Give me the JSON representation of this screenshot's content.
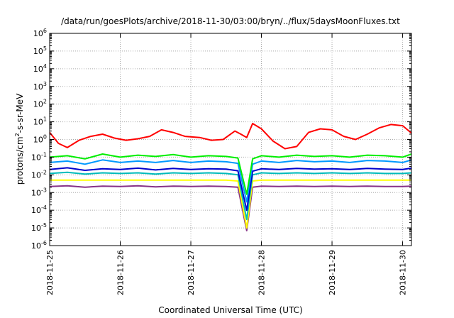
{
  "chart_data": {
    "type": "line",
    "title": "/data/run/goesPlots/archive/2018-11-30/03:00/bryn/../flux/5daysMoonFluxes.txt",
    "xlabel": "Coordinated Universal Time (UTC)",
    "ylabel": {
      "base": "protons/cm",
      "sup": "2",
      "rest": "-s-sr-MeV"
    },
    "y_scale": "log",
    "ylim": [
      1e-06,
      1000000.0
    ],
    "y_ticks": [
      {
        "value": 1e-06,
        "base": "10",
        "exp": "-6"
      },
      {
        "value": 1e-05,
        "base": "10",
        "exp": "-5"
      },
      {
        "value": 0.0001,
        "base": "10",
        "exp": "-4"
      },
      {
        "value": 0.001,
        "base": "10",
        "exp": "-3"
      },
      {
        "value": 0.01,
        "base": "10",
        "exp": "-2"
      },
      {
        "value": 0.1,
        "base": "10",
        "exp": "-1"
      },
      {
        "value": 1,
        "base": "10",
        "exp": "0"
      },
      {
        "value": 10.0,
        "base": "10",
        "exp": "1"
      },
      {
        "value": 100.0,
        "base": "10",
        "exp": "2"
      },
      {
        "value": 1000.0,
        "base": "10",
        "exp": "3"
      },
      {
        "value": 10000.0,
        "base": "10",
        "exp": "4"
      },
      {
        "value": 100000.0,
        "base": "10",
        "exp": "5"
      },
      {
        "value": 1000000.0,
        "base": "10",
        "exp": "6"
      }
    ],
    "x_ticks": [
      "2018-11-25",
      "2018-11-26",
      "2018-11-27",
      "2018-11-28",
      "2018-11-29",
      "2018-11-30"
    ],
    "xlim": [
      "2018-11-25T00:00",
      "2018-11-30T03:00"
    ],
    "grid": true,
    "series": [
      {
        "color": "#ff0000",
        "x": [
          "2018-11-25T00:00",
          "2018-11-25T03:00",
          "2018-11-25T06:00",
          "2018-11-25T10:00",
          "2018-11-25T14:00",
          "2018-11-25T18:00",
          "2018-11-25T22:00",
          "2018-11-26T02:00",
          "2018-11-26T06:00",
          "2018-11-26T10:00",
          "2018-11-26T14:00",
          "2018-11-26T18:00",
          "2018-11-26T22:00",
          "2018-11-27T03:00",
          "2018-11-27T07:00",
          "2018-11-27T11:00",
          "2018-11-27T15:00",
          "2018-11-27T17:00",
          "2018-11-27T19:00",
          "2018-11-27T21:00",
          "2018-11-28T00:00",
          "2018-11-28T04:00",
          "2018-11-28T08:00",
          "2018-11-28T12:00",
          "2018-11-28T16:00",
          "2018-11-28T20:00",
          "2018-11-29T00:00",
          "2018-11-29T04:00",
          "2018-11-29T08:00",
          "2018-11-29T12:00",
          "2018-11-29T16:00",
          "2018-11-29T20:00",
          "2018-11-30T00:00",
          "2018-11-30T03:00"
        ],
        "y": [
          2.5,
          0.6,
          0.35,
          0.9,
          1.5,
          2,
          1.2,
          0.9,
          1.1,
          1.5,
          3.5,
          2.5,
          1.5,
          1.3,
          0.9,
          1.0,
          3.0,
          2.0,
          1.3,
          8,
          4,
          0.8,
          0.3,
          0.4,
          2.5,
          4,
          3.5,
          1.5,
          1.0,
          2.0,
          4.5,
          7,
          6,
          2.3
        ]
      },
      {
        "color": "#00ee00",
        "x": [
          "2018-11-25T00:00",
          "2018-11-25T06:00",
          "2018-11-25T12:00",
          "2018-11-25T18:00",
          "2018-11-26T00:00",
          "2018-11-26T06:00",
          "2018-11-26T12:00",
          "2018-11-26T18:00",
          "2018-11-27T00:00",
          "2018-11-27T06:00",
          "2018-11-27T12:00",
          "2018-11-27T16:00",
          "2018-11-27T19:00",
          "2018-11-27T21:00",
          "2018-11-28T00:00",
          "2018-11-28T06:00",
          "2018-11-28T12:00",
          "2018-11-28T18:00",
          "2018-11-29T00:00",
          "2018-11-29T06:00",
          "2018-11-29T12:00",
          "2018-11-29T18:00",
          "2018-11-30T00:00",
          "2018-11-30T03:00"
        ],
        "y": [
          0.1,
          0.12,
          0.08,
          0.15,
          0.1,
          0.13,
          0.11,
          0.14,
          0.1,
          0.12,
          0.11,
          0.09,
          0.0008,
          0.08,
          0.12,
          0.1,
          0.13,
          0.11,
          0.12,
          0.1,
          0.13,
          0.12,
          0.1,
          0.15
        ]
      },
      {
        "color": "#0099ff",
        "x": [
          "2018-11-25T00:00",
          "2018-11-25T06:00",
          "2018-11-25T12:00",
          "2018-11-25T18:00",
          "2018-11-26T00:00",
          "2018-11-26T06:00",
          "2018-11-26T12:00",
          "2018-11-26T18:00",
          "2018-11-27T00:00",
          "2018-11-27T06:00",
          "2018-11-27T12:00",
          "2018-11-27T16:00",
          "2018-11-27T19:00",
          "2018-11-27T21:00",
          "2018-11-28T00:00",
          "2018-11-28T06:00",
          "2018-11-28T12:00",
          "2018-11-28T18:00",
          "2018-11-29T00:00",
          "2018-11-29T06:00",
          "2018-11-29T12:00",
          "2018-11-29T18:00",
          "2018-11-30T00:00",
          "2018-11-30T03:00"
        ],
        "y": [
          0.05,
          0.06,
          0.04,
          0.07,
          0.05,
          0.06,
          0.05,
          0.065,
          0.05,
          0.06,
          0.055,
          0.045,
          0.0003,
          0.04,
          0.06,
          0.05,
          0.065,
          0.055,
          0.06,
          0.05,
          0.065,
          0.06,
          0.05,
          0.07
        ]
      },
      {
        "color": "#0000cc",
        "x": [
          "2018-11-25T00:00",
          "2018-11-25T06:00",
          "2018-11-25T12:00",
          "2018-11-25T18:00",
          "2018-11-26T00:00",
          "2018-11-26T06:00",
          "2018-11-26T12:00",
          "2018-11-26T18:00",
          "2018-11-27T00:00",
          "2018-11-27T06:00",
          "2018-11-27T12:00",
          "2018-11-27T16:00",
          "2018-11-27T19:00",
          "2018-11-27T21:00",
          "2018-11-28T00:00",
          "2018-11-28T06:00",
          "2018-11-28T12:00",
          "2018-11-28T18:00",
          "2018-11-29T00:00",
          "2018-11-29T06:00",
          "2018-11-29T12:00",
          "2018-11-29T18:00",
          "2018-11-30T00:00",
          "2018-11-30T03:00"
        ],
        "y": [
          0.02,
          0.025,
          0.018,
          0.022,
          0.02,
          0.024,
          0.019,
          0.023,
          0.02,
          0.022,
          0.021,
          0.017,
          0.0001,
          0.016,
          0.022,
          0.02,
          0.023,
          0.021,
          0.022,
          0.02,
          0.023,
          0.021,
          0.02,
          0.024
        ]
      },
      {
        "color": "#00bbbb",
        "x": [
          "2018-11-25T00:00",
          "2018-11-25T06:00",
          "2018-11-25T12:00",
          "2018-11-25T18:00",
          "2018-11-26T00:00",
          "2018-11-26T06:00",
          "2018-11-26T12:00",
          "2018-11-26T18:00",
          "2018-11-27T00:00",
          "2018-11-27T06:00",
          "2018-11-27T12:00",
          "2018-11-27T16:00",
          "2018-11-27T19:00",
          "2018-11-27T21:00",
          "2018-11-28T00:00",
          "2018-11-28T06:00",
          "2018-11-28T12:00",
          "2018-11-28T18:00",
          "2018-11-29T00:00",
          "2018-11-29T06:00",
          "2018-11-29T12:00",
          "2018-11-29T18:00",
          "2018-11-30T00:00",
          "2018-11-30T03:00"
        ],
        "y": [
          0.012,
          0.014,
          0.011,
          0.013,
          0.012,
          0.013,
          0.011,
          0.013,
          0.012,
          0.013,
          0.012,
          0.01,
          3e-05,
          0.01,
          0.013,
          0.012,
          0.013,
          0.012,
          0.013,
          0.012,
          0.013,
          0.012,
          0.012,
          0.013
        ]
      },
      {
        "color": "#ffff00",
        "x": [
          "2018-11-25T00:00",
          "2018-11-25T06:00",
          "2018-11-25T12:00",
          "2018-11-25T18:00",
          "2018-11-26T00:00",
          "2018-11-26T06:00",
          "2018-11-26T12:00",
          "2018-11-26T18:00",
          "2018-11-27T00:00",
          "2018-11-27T06:00",
          "2018-11-27T12:00",
          "2018-11-27T16:00",
          "2018-11-27T19:00",
          "2018-11-27T21:00",
          "2018-11-28T00:00",
          "2018-11-28T06:00",
          "2018-11-28T12:00",
          "2018-11-28T18:00",
          "2018-11-29T00:00",
          "2018-11-29T06:00",
          "2018-11-29T12:00",
          "2018-11-29T18:00",
          "2018-11-30T00:00",
          "2018-11-30T03:00"
        ],
        "y": [
          0.005,
          0.005,
          0.005,
          0.005,
          0.005,
          0.005,
          0.005,
          0.005,
          0.005,
          0.005,
          0.005,
          0.0045,
          1e-05,
          0.0045,
          0.005,
          0.005,
          0.005,
          0.005,
          0.005,
          0.005,
          0.005,
          0.005,
          0.005,
          0.005
        ]
      },
      {
        "color": "#883388",
        "x": [
          "2018-11-25T00:00",
          "2018-11-25T06:00",
          "2018-11-25T12:00",
          "2018-11-25T18:00",
          "2018-11-26T00:00",
          "2018-11-26T06:00",
          "2018-11-26T12:00",
          "2018-11-26T18:00",
          "2018-11-27T00:00",
          "2018-11-27T06:00",
          "2018-11-27T12:00",
          "2018-11-27T16:00",
          "2018-11-27T19:00",
          "2018-11-27T21:00",
          "2018-11-28T00:00",
          "2018-11-28T06:00",
          "2018-11-28T12:00",
          "2018-11-28T18:00",
          "2018-11-29T00:00",
          "2018-11-29T06:00",
          "2018-11-29T12:00",
          "2018-11-29T18:00",
          "2018-11-30T00:00",
          "2018-11-30T03:00"
        ],
        "y": [
          0.0022,
          0.0024,
          0.002,
          0.0023,
          0.0022,
          0.0024,
          0.0021,
          0.0023,
          0.0022,
          0.0023,
          0.0022,
          0.002,
          7e-06,
          0.002,
          0.0023,
          0.0022,
          0.0023,
          0.0022,
          0.0023,
          0.0022,
          0.0023,
          0.0022,
          0.0022,
          0.0023
        ]
      }
    ]
  }
}
